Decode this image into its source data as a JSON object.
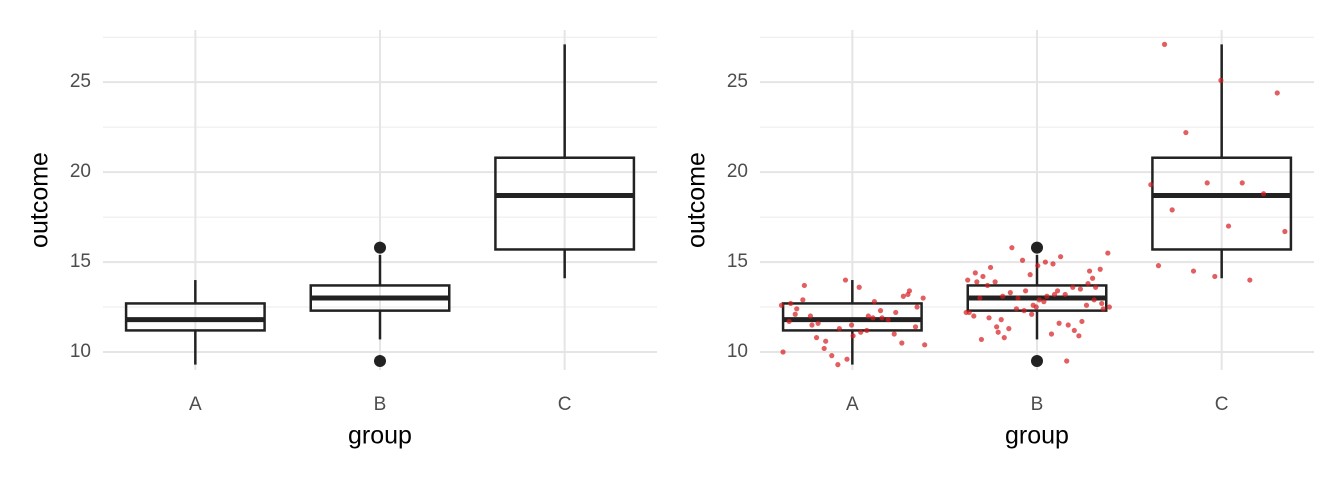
{
  "chart_data": [
    {
      "type": "box",
      "x_label": "group",
      "y_label": "outcome",
      "categories": [
        "A",
        "B",
        "C"
      ],
      "boxes": [
        {
          "low": 9.3,
          "q1": 11.2,
          "median": 11.8,
          "q3": 12.7,
          "high": 14.0,
          "outliers": []
        },
        {
          "low": 10.7,
          "q1": 12.3,
          "median": 13.0,
          "q3": 13.7,
          "high": 15.4,
          "outliers": [
            15.8,
            9.5
          ]
        },
        {
          "low": 14.1,
          "q1": 15.7,
          "median": 18.7,
          "q3": 20.8,
          "high": 27.1,
          "outliers": []
        }
      ],
      "color": "#222222",
      "ylim": [
        9,
        27.9
      ],
      "yticks": [
        10,
        15,
        20,
        25
      ],
      "minor_yticks": [
        12.5,
        17.5,
        22.5,
        27.5
      ],
      "grid": true
    },
    {
      "type": "box_jitter",
      "x_label": "group",
      "y_label": "outcome",
      "categories": [
        "A",
        "B",
        "C"
      ],
      "boxes": [
        {
          "low": 9.3,
          "q1": 11.2,
          "median": 11.8,
          "q3": 12.7,
          "high": 14.0,
          "outliers": []
        },
        {
          "low": 10.7,
          "q1": 12.3,
          "median": 13.0,
          "q3": 13.7,
          "high": 15.4,
          "outliers": [
            15.8,
            9.5
          ]
        },
        {
          "low": 14.1,
          "q1": 15.7,
          "median": 18.7,
          "q3": 20.8,
          "high": 27.1,
          "outliers": []
        }
      ],
      "color": "#222222",
      "point_color": "#d7191c",
      "points": [
        [
          12.1,
          11.5,
          13.2,
          10.8,
          11.9,
          12.6,
          9.3,
          11.0,
          12.9,
          13.6,
          11.4,
          10.2,
          12.3,
          11.7,
          14.0,
          10.5,
          12.0,
          11.2,
          13.0,
          9.8,
          11.8,
          12.4,
          10.9,
          13.4,
          11.6,
          12.8,
          10.0,
          11.3,
          12.2,
          13.7,
          11.1,
          12.5,
          10.6,
          11.9,
          12.7,
          9.6,
          13.1,
          11.5,
          12.0,
          10.4
        ],
        [
          13.0,
          12.5,
          14.1,
          11.8,
          13.4,
          12.2,
          15.1,
          10.9,
          13.7,
          12.8,
          14.6,
          11.3,
          13.2,
          12.0,
          14.3,
          12.6,
          13.9,
          11.0,
          15.5,
          12.4,
          13.6,
          10.7,
          14.8,
          12.9,
          13.1,
          11.6,
          14.0,
          12.3,
          13.5,
          11.9,
          15.0,
          12.7,
          13.3,
          9.5,
          14.4,
          12.1,
          13.8,
          11.4,
          14.9,
          12.5,
          13.0,
          11.2,
          14.2,
          12.9,
          13.6,
          10.8,
          15.3,
          12.2,
          13.4,
          11.7,
          14.7,
          13.1,
          12.4,
          15.8,
          11.5,
          13.9,
          12.6,
          14.5,
          11.1,
          13.2
        ],
        [
          27.1,
          25.1,
          24.4,
          22.2,
          19.4,
          19.3,
          19.4,
          18.8,
          17.9,
          17.0,
          16.7,
          14.5,
          14.0,
          14.8,
          14.2
        ]
      ],
      "ylim": [
        9,
        27.9
      ],
      "yticks": [
        10,
        15,
        20,
        25
      ],
      "minor_yticks": [
        12.5,
        17.5,
        22.5,
        27.5
      ],
      "grid": true
    }
  ]
}
